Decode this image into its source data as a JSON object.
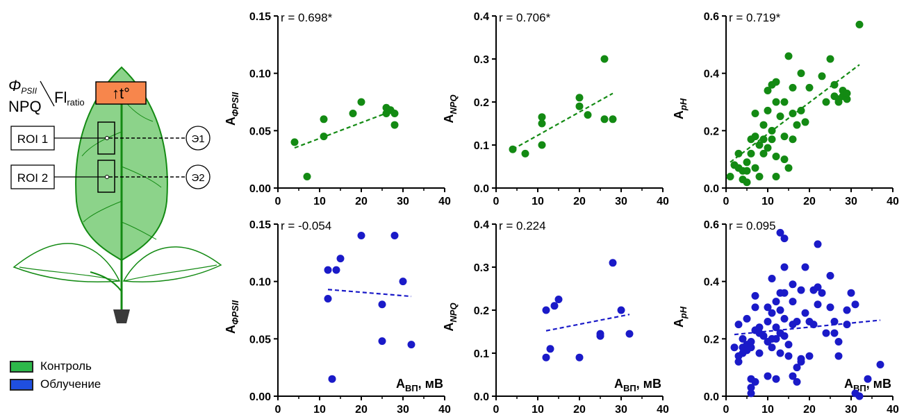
{
  "diagram": {
    "phi_label": "Φ",
    "phi_sub": "PSII",
    "npq_label": "NPQ",
    "fl_label": "Fl",
    "fl_sub": "ratio",
    "temp_box": "↑t°",
    "roi1": "ROI 1",
    "roi2": "ROI 2",
    "e1": "Э1",
    "e2": "Э2"
  },
  "legend": {
    "control": "Контроль",
    "irradiation": "Облучение"
  },
  "colors": {
    "control": "#138a13",
    "irradiation": "#1a1ac8",
    "leaf_fill": "#8cd38a",
    "leaf_stroke": "#138a13",
    "orange": "#f7864c",
    "control_swatch": "#2db84a",
    "irradiation_swatch": "#1f4fe0"
  },
  "chart_data": [
    {
      "id": "p1",
      "type": "scatter",
      "row": 0,
      "col": 0,
      "color": "control",
      "r": "r = 0.698*",
      "ylabel_main": "A",
      "ylabel_sub": "ΦPSII",
      "xlabel_main": "",
      "xlabel_sub": "",
      "xlim": [
        0,
        40
      ],
      "ylim": [
        0,
        0.15
      ],
      "xticks": [
        "0",
        "10",
        "20",
        "30",
        "40"
      ],
      "yticks": [
        "0.00",
        "0.05",
        "0.10",
        "0.15"
      ],
      "points": [
        [
          4,
          0.04
        ],
        [
          7,
          0.01
        ],
        [
          11,
          0.045
        ],
        [
          11,
          0.06
        ],
        [
          18,
          0.065
        ],
        [
          20,
          0.075
        ],
        [
          26,
          0.065
        ],
        [
          26,
          0.07
        ],
        [
          27,
          0.068
        ],
        [
          28,
          0.065
        ],
        [
          28,
          0.055
        ]
      ],
      "trend": [
        [
          4,
          0.035
        ],
        [
          28,
          0.068
        ]
      ]
    },
    {
      "id": "p2",
      "type": "scatter",
      "row": 0,
      "col": 1,
      "color": "control",
      "r": "r = 0.706*",
      "ylabel_main": "A",
      "ylabel_sub": "NPQ",
      "xlabel_main": "",
      "xlabel_sub": "",
      "xlim": [
        0,
        40
      ],
      "ylim": [
        0,
        0.4
      ],
      "xticks": [
        "0",
        "10",
        "20",
        "30",
        "40"
      ],
      "yticks": [
        "0.0",
        "0.1",
        "0.2",
        "0.3",
        "0.4"
      ],
      "points": [
        [
          4,
          0.09
        ],
        [
          7,
          0.08
        ],
        [
          11,
          0.1
        ],
        [
          11,
          0.15
        ],
        [
          11,
          0.165
        ],
        [
          20,
          0.19
        ],
        [
          20,
          0.21
        ],
        [
          22,
          0.17
        ],
        [
          26,
          0.16
        ],
        [
          26,
          0.3
        ],
        [
          28,
          0.16
        ]
      ],
      "trend": [
        [
          4,
          0.09
        ],
        [
          28,
          0.22
        ]
      ]
    },
    {
      "id": "p3",
      "type": "scatter",
      "row": 0,
      "col": 2,
      "color": "control",
      "r": "r = 0.719*",
      "ylabel_main": "A",
      "ylabel_sub": "pH",
      "xlabel_main": "",
      "xlabel_sub": "",
      "xlim": [
        0,
        40
      ],
      "ylim": [
        0,
        0.6
      ],
      "xticks": [
        "0",
        "10",
        "20",
        "30",
        "40"
      ],
      "yticks": [
        "0.0",
        "0.2",
        "0.4",
        "0.6"
      ],
      "points": [
        [
          1,
          0.04
        ],
        [
          2,
          0.08
        ],
        [
          3,
          0.12
        ],
        [
          3,
          0.07
        ],
        [
          4,
          0.06
        ],
        [
          4,
          0.03
        ],
        [
          5,
          0.02
        ],
        [
          5,
          0.06
        ],
        [
          5,
          0.09
        ],
        [
          6,
          0.12
        ],
        [
          6,
          0.17
        ],
        [
          7,
          0.07
        ],
        [
          7,
          0.26
        ],
        [
          7,
          0.18
        ],
        [
          8,
          0.15
        ],
        [
          8,
          0.04
        ],
        [
          9,
          0.22
        ],
        [
          9,
          0.12
        ],
        [
          9,
          0.17
        ],
        [
          10,
          0.27
        ],
        [
          10,
          0.34
        ],
        [
          10,
          0.14
        ],
        [
          11,
          0.36
        ],
        [
          11,
          0.2
        ],
        [
          11,
          0.17
        ],
        [
          12,
          0.37
        ],
        [
          12,
          0.3
        ],
        [
          12,
          0.11
        ],
        [
          12,
          0.04
        ],
        [
          13,
          0.25
        ],
        [
          14,
          0.18
        ],
        [
          14,
          0.3
        ],
        [
          14,
          0.1
        ],
        [
          15,
          0.07
        ],
        [
          15,
          0.46
        ],
        [
          16,
          0.35
        ],
        [
          16,
          0.26
        ],
        [
          16,
          0.17
        ],
        [
          17,
          0.22
        ],
        [
          18,
          0.4
        ],
        [
          18,
          0.27
        ],
        [
          19,
          0.23
        ],
        [
          20,
          0.35
        ],
        [
          23,
          0.39
        ],
        [
          24,
          0.3
        ],
        [
          25,
          0.45
        ],
        [
          26,
          0.36
        ],
        [
          26,
          0.32
        ],
        [
          27,
          0.31
        ],
        [
          27,
          0.3
        ],
        [
          28,
          0.32
        ],
        [
          28,
          0.34
        ],
        [
          29,
          0.31
        ],
        [
          29,
          0.33
        ],
        [
          32,
          0.57
        ]
      ],
      "trend": [
        [
          1,
          0.09
        ],
        [
          32,
          0.43
        ]
      ]
    },
    {
      "id": "p4",
      "type": "scatter",
      "row": 1,
      "col": 0,
      "color": "irradiation",
      "r": "r = -0.054",
      "ylabel_main": "A",
      "ylabel_sub": "ΦPSII",
      "xlabel_main": "A",
      "xlabel_sub": "ВП",
      "xlabel_unit": ", мВ",
      "xlim": [
        0,
        40
      ],
      "ylim": [
        0,
        0.15
      ],
      "xticks": [
        "0",
        "10",
        "20",
        "30",
        "40"
      ],
      "yticks": [
        "0.00",
        "0.05",
        "0.10",
        "0.15"
      ],
      "points": [
        [
          12,
          0.11
        ],
        [
          12,
          0.085
        ],
        [
          13,
          0.015
        ],
        [
          14,
          0.11
        ],
        [
          15,
          0.12
        ],
        [
          20,
          0.14
        ],
        [
          25,
          0.08
        ],
        [
          25,
          0.048
        ],
        [
          28,
          0.14
        ],
        [
          30,
          0.1
        ],
        [
          32,
          0.045
        ]
      ],
      "trend": [
        [
          12,
          0.093
        ],
        [
          32,
          0.087
        ]
      ]
    },
    {
      "id": "p5",
      "type": "scatter",
      "row": 1,
      "col": 1,
      "color": "irradiation",
      "r": "r = 0.224",
      "ylabel_main": "A",
      "ylabel_sub": "NPQ",
      "xlabel_main": "A",
      "xlabel_sub": "ВП",
      "xlabel_unit": ", мВ",
      "xlim": [
        0,
        40
      ],
      "ylim": [
        0,
        0.4
      ],
      "xticks": [
        "0",
        "10",
        "20",
        "30",
        "40"
      ],
      "yticks": [
        "0.0",
        "0.1",
        "0.2",
        "0.3",
        "0.4"
      ],
      "points": [
        [
          12,
          0.09
        ],
        [
          12,
          0.2
        ],
        [
          13,
          0.11
        ],
        [
          14,
          0.21
        ],
        [
          15,
          0.225
        ],
        [
          20,
          0.09
        ],
        [
          25,
          0.14
        ],
        [
          25,
          0.145
        ],
        [
          28,
          0.31
        ],
        [
          30,
          0.2
        ],
        [
          32,
          0.145
        ]
      ],
      "trend": [
        [
          12,
          0.152
        ],
        [
          32,
          0.19
        ]
      ]
    },
    {
      "id": "p6",
      "type": "scatter",
      "row": 1,
      "col": 2,
      "color": "irradiation",
      "r": "r = 0.095",
      "ylabel_main": "A",
      "ylabel_sub": "pH",
      "xlabel_main": "A",
      "xlabel_sub": "ВП",
      "xlabel_unit": ", мВ",
      "xlim": [
        0,
        40
      ],
      "ylim": [
        0,
        0.6
      ],
      "xticks": [
        "0",
        "10",
        "20",
        "30",
        "40"
      ],
      "yticks": [
        "0.0",
        "0.2",
        "0.4",
        "0.6"
      ],
      "points": [
        [
          2,
          0.17
        ],
        [
          3,
          0.25
        ],
        [
          3,
          0.14
        ],
        [
          3,
          0.12
        ],
        [
          4,
          0.2
        ],
        [
          4,
          0.17
        ],
        [
          4,
          0.15
        ],
        [
          5,
          0.18
        ],
        [
          5,
          0.27
        ],
        [
          5,
          0.16
        ],
        [
          6,
          0.19
        ],
        [
          6,
          0.17
        ],
        [
          6,
          0.06
        ],
        [
          6,
          0.03
        ],
        [
          6,
          0.01
        ],
        [
          7,
          0.35
        ],
        [
          7,
          0.31
        ],
        [
          7,
          0.23
        ],
        [
          7,
          0.05
        ],
        [
          8,
          0.22
        ],
        [
          8,
          0.24
        ],
        [
          8,
          0.15
        ],
        [
          9,
          0.21
        ],
        [
          10,
          0.31
        ],
        [
          10,
          0.26
        ],
        [
          10,
          0.19
        ],
        [
          10,
          0.07
        ],
        [
          11,
          0.41
        ],
        [
          11,
          0.29
        ],
        [
          11,
          0.2
        ],
        [
          11,
          0.17
        ],
        [
          12,
          0.33
        ],
        [
          12,
          0.24
        ],
        [
          12,
          0.2
        ],
        [
          12,
          0.06
        ],
        [
          13,
          0.57
        ],
        [
          13,
          0.36
        ],
        [
          13,
          0.3
        ],
        [
          13,
          0.22
        ],
        [
          13,
          0.15
        ],
        [
          14,
          0.55
        ],
        [
          14,
          0.45
        ],
        [
          14,
          0.36
        ],
        [
          14,
          0.27
        ],
        [
          14,
          0.21
        ],
        [
          15,
          0.18
        ],
        [
          15,
          0.14
        ],
        [
          16,
          0.39
        ],
        [
          16,
          0.33
        ],
        [
          16,
          0.25
        ],
        [
          16,
          0.07
        ],
        [
          17,
          0.26
        ],
        [
          17,
          0.1
        ],
        [
          17,
          0.05
        ],
        [
          18,
          0.37
        ],
        [
          18,
          0.13
        ],
        [
          18,
          0.12
        ],
        [
          19,
          0.45
        ],
        [
          19,
          0.29
        ],
        [
          20,
          0.26
        ],
        [
          20,
          0.14
        ],
        [
          21,
          0.37
        ],
        [
          21,
          0.25
        ],
        [
          22,
          0.53
        ],
        [
          22,
          0.38
        ],
        [
          22,
          0.32
        ],
        [
          23,
          0.36
        ],
        [
          24,
          0.22
        ],
        [
          25,
          0.42
        ],
        [
          25,
          0.31
        ],
        [
          26,
          0.26
        ],
        [
          26,
          0.22
        ],
        [
          27,
          0.14
        ],
        [
          27,
          0.19
        ],
        [
          29,
          0.3
        ],
        [
          29,
          0.25
        ],
        [
          30,
          0.36
        ],
        [
          31,
          0.32
        ],
        [
          31,
          0.01
        ],
        [
          32,
          0.0
        ],
        [
          34,
          0.06
        ],
        [
          37,
          0.11
        ]
      ],
      "trend": [
        [
          2,
          0.215
        ],
        [
          37,
          0.265
        ]
      ]
    }
  ]
}
